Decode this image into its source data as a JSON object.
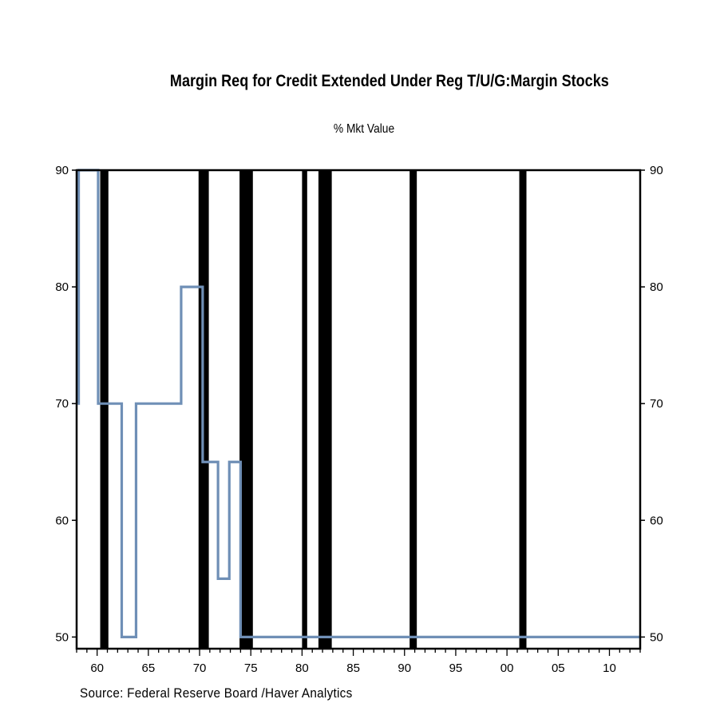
{
  "chart_data": {
    "type": "line",
    "title": "Margin Req for Credit Extended Under Reg T/U/G:Margin Stocks",
    "unit_label": "% Mkt Value",
    "source": "Source:  Federal Reserve Board /Haver Analytics",
    "xlim": [
      1958.0,
      2013.0
    ],
    "ylim": [
      49.0,
      90.0
    ],
    "y_ticks": [
      50,
      60,
      70,
      80,
      90
    ],
    "x_ticks": [
      {
        "year": 1960,
        "label": "60"
      },
      {
        "year": 1965,
        "label": "65"
      },
      {
        "year": 1970,
        "label": "70"
      },
      {
        "year": 1975,
        "label": "75"
      },
      {
        "year": 1980,
        "label": "80"
      },
      {
        "year": 1985,
        "label": "85"
      },
      {
        "year": 1990,
        "label": "90"
      },
      {
        "year": 1995,
        "label": "95"
      },
      {
        "year": 2000,
        "label": "00"
      },
      {
        "year": 2005,
        "label": "05"
      },
      {
        "year": 2010,
        "label": "10"
      }
    ],
    "recessions": [
      [
        1960.3,
        1961.1
      ],
      [
        1969.9,
        1970.9
      ],
      [
        1973.9,
        1975.2
      ],
      [
        1980.0,
        1980.5
      ],
      [
        1981.6,
        1982.9
      ],
      [
        1990.5,
        1991.2
      ],
      [
        2001.2,
        2001.9
      ]
    ],
    "line_color": "#6f8fb6",
    "recession_color": "#000000",
    "series": [
      {
        "step": true,
        "x": [
          1958.1,
          1958.2,
          1960.1,
          1962.4,
          1963.8,
          1968.2,
          1970.3,
          1971.8,
          1972.9,
          1974.0,
          2013.0
        ],
        "values": [
          70,
          90,
          70,
          50,
          70,
          80,
          65,
          55,
          65,
          50,
          50
        ]
      }
    ]
  }
}
